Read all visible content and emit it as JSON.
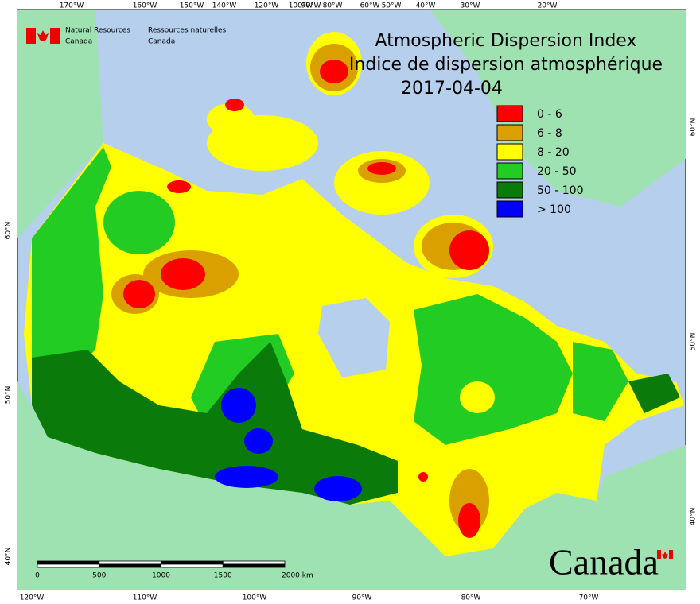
{
  "header": {
    "agency_en": [
      "Natural Resources",
      "Canada"
    ],
    "agency_fr": [
      "Ressources naturelles",
      "Canada"
    ]
  },
  "title": [
    "Atmospheric Dispersion Index",
    "Indice de dispersion atmosphérique"
  ],
  "date": "2017-04-04",
  "legend": [
    {
      "label": "0 - 6",
      "color": "#ff0000"
    },
    {
      "label": "6 - 8",
      "color": "#d9a000"
    },
    {
      "label": "8 - 20",
      "color": "#ffff00"
    },
    {
      "label": "20 - 50",
      "color": "#22cc22"
    },
    {
      "label": "50 - 100",
      "color": "#0a7a0a"
    },
    {
      "label": "> 100",
      "color": "#0000ff"
    }
  ],
  "lon_labels_top": [
    "170°W",
    "160°W",
    "150°W",
    "140°W",
    "120°W",
    "100°W",
    "90°W",
    "80°W",
    "60°W",
    "50°W",
    "40°W",
    "30°W",
    "20°W"
  ],
  "lon_labels_bottom": [
    "120°W",
    "110°W",
    "100°W",
    "90°W",
    "80°W",
    "70°W"
  ],
  "lat_labels_left": [
    "60°N",
    "50°N",
    "40°N"
  ],
  "lat_labels_right": [
    "60°N",
    "50°N",
    "40°N"
  ],
  "scale_bar": [
    "0",
    "500",
    "1000",
    "1500",
    "2000  km"
  ],
  "wordmark": "Canada"
}
